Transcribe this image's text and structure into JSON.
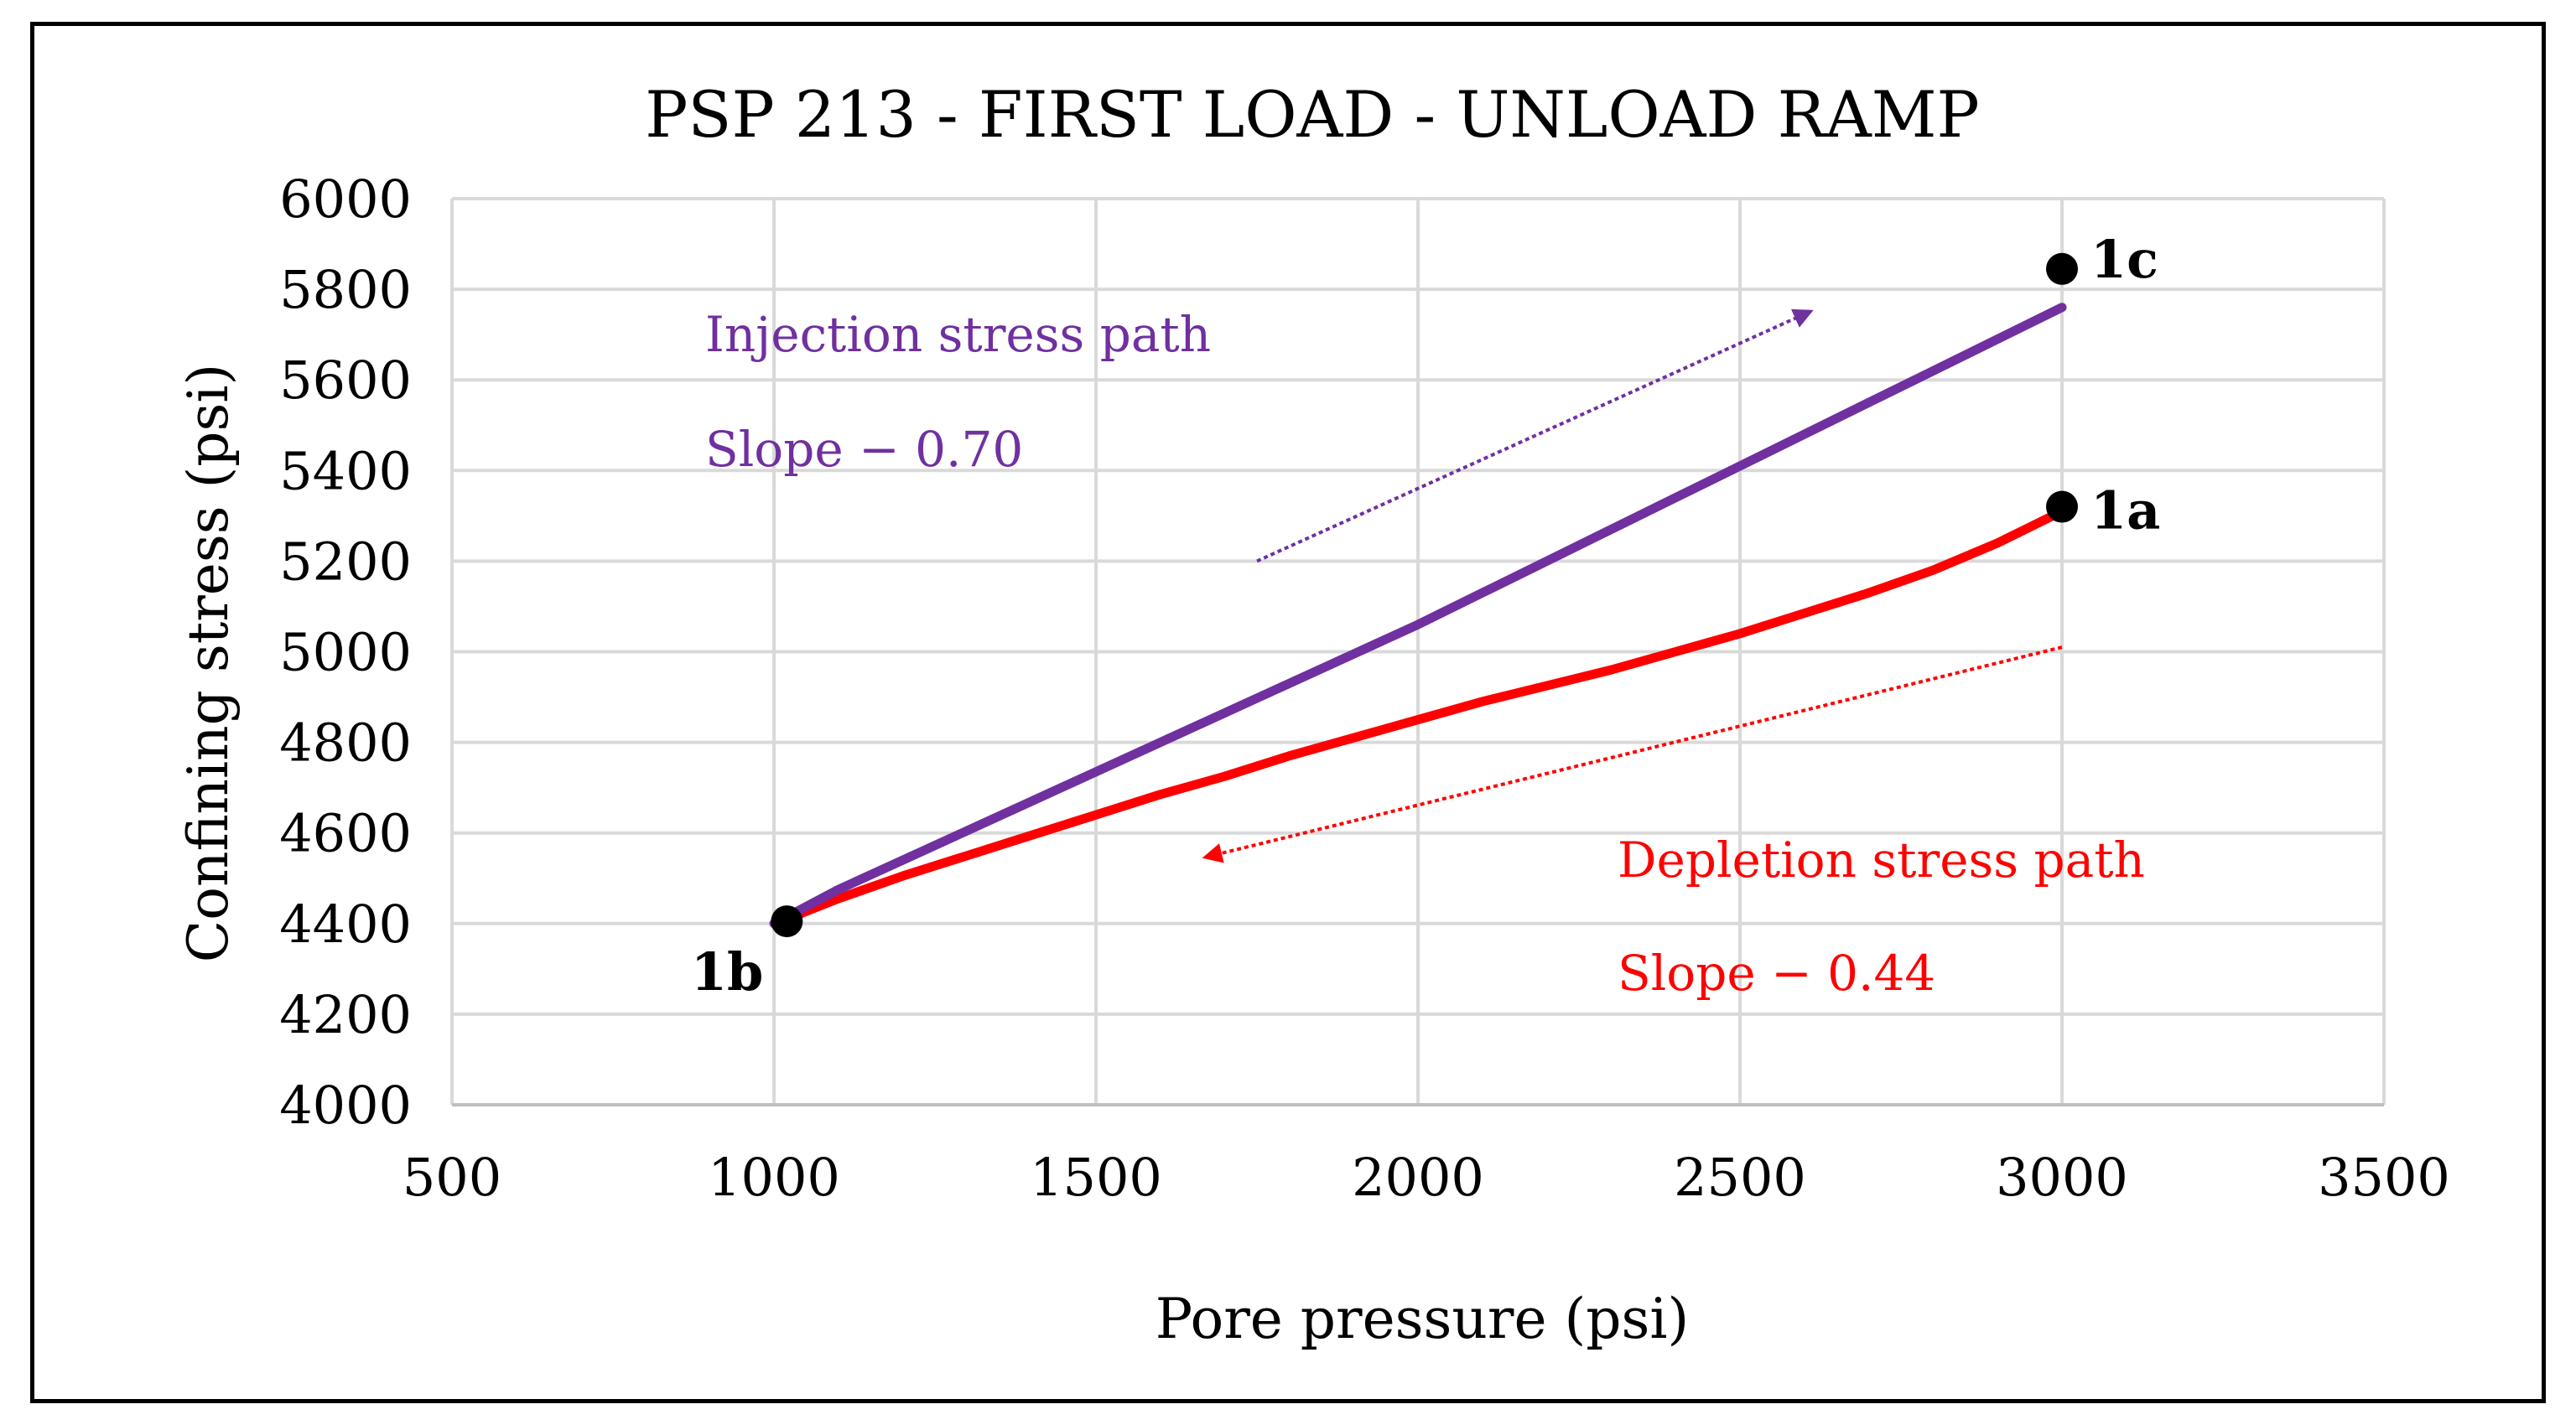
{
  "chart_data": {
    "type": "line",
    "title": "PSP 213 - FIRST LOAD - UNLOAD RAMP",
    "xlabel": "Pore pressure (psi)",
    "ylabel": "Confining stress (psi)",
    "xlim": [
      500,
      3500
    ],
    "ylim": [
      4000,
      6000
    ],
    "x_ticks": [
      500,
      1000,
      1500,
      2000,
      2500,
      3000,
      3500
    ],
    "y_ticks": [
      4000,
      4200,
      4400,
      4600,
      4800,
      5000,
      5200,
      5400,
      5600,
      5800,
      6000
    ],
    "grid": true,
    "series": [
      {
        "name": "Depletion stress path",
        "color": "#ff0000",
        "x": [
          3000,
          2900,
          2800,
          2700,
          2600,
          2500,
          2400,
          2300,
          2200,
          2100,
          2000,
          1900,
          1800,
          1700,
          1600,
          1500,
          1400,
          1300,
          1200,
          1100,
          1020
        ],
        "y": [
          5310,
          5240,
          5180,
          5130,
          5085,
          5040,
          5000,
          4960,
          4925,
          4890,
          4850,
          4810,
          4770,
          4725,
          4685,
          4640,
          4595,
          4550,
          4505,
          4455,
          4410
        ]
      },
      {
        "name": "Injection stress path",
        "color": "#7030a0",
        "x": [
          1000,
          1020,
          1100,
          1200,
          1300,
          1400,
          1500,
          1600,
          1700,
          1800,
          1900,
          2000,
          2100,
          2200,
          2300,
          2400,
          2500,
          2600,
          2700,
          2800,
          2900,
          3000
        ],
        "y": [
          4400,
          4415,
          4475,
          4540,
          4605,
          4670,
          4735,
          4800,
          4865,
          4930,
          4995,
          5060,
          5130,
          5200,
          5270,
          5340,
          5410,
          5480,
          5550,
          5620,
          5690,
          5760
        ]
      }
    ],
    "points": [
      {
        "label": "1a",
        "x": 3000,
        "y": 5320
      },
      {
        "label": "1b",
        "x": 1020,
        "y": 4405
      },
      {
        "label": "1c",
        "x": 3000,
        "y": 5845
      }
    ],
    "annotations": [
      {
        "id": "injection",
        "text": "Injection stress path",
        "color": "#7030a0"
      },
      {
        "id": "injection_slope",
        "text": "Slope − 0.70",
        "color": "#7030a0"
      },
      {
        "id": "depletion",
        "text": "Depletion stress path",
        "color": "#ff0000"
      },
      {
        "id": "depletion_slope",
        "text": "Slope − 0.44",
        "color": "#ff0000"
      }
    ],
    "arrows": [
      {
        "name": "injection-arrow",
        "color": "#7030a0",
        "from": [
          1750,
          5200
        ],
        "to": [
          2600,
          5745
        ]
      },
      {
        "name": "depletion-arrow",
        "color": "#ff0000",
        "from": [
          3000,
          5010
        ],
        "to": [
          1680,
          4550
        ]
      }
    ]
  }
}
